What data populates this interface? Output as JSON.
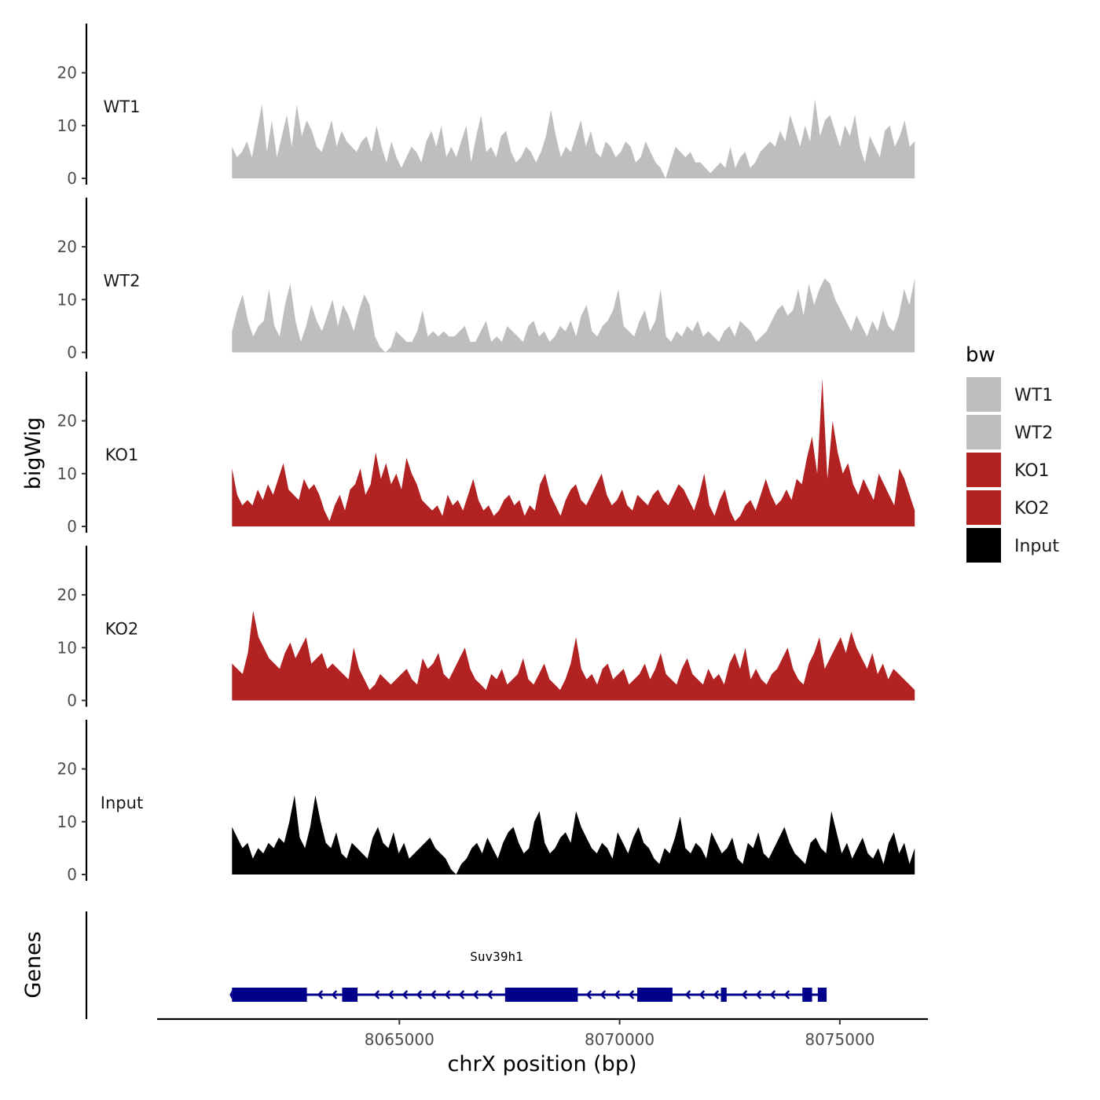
{
  "chart_data": {
    "type": "area",
    "xlabel": "chrX position (bp)",
    "ylabel": "bigWig",
    "genes_label": "Genes",
    "xlim": [
      8059500,
      8077000
    ],
    "x_ticks": [
      8065000,
      8070000,
      8075000
    ],
    "x_tick_labels": [
      "8065000",
      "8070000",
      "8075000"
    ],
    "ylim": [
      0,
      30
    ],
    "y_ticks": [
      0,
      10,
      20
    ],
    "y_tick_labels": [
      "0",
      "10",
      "20"
    ],
    "legend": {
      "title": "bw",
      "position": "right",
      "entries": [
        {
          "label": "WT1",
          "color": "#bebebe"
        },
        {
          "label": "WT2",
          "color": "#bebebe"
        },
        {
          "label": "KO1",
          "color": "#b22222"
        },
        {
          "label": "KO2",
          "color": "#b22222"
        },
        {
          "label": "Input",
          "color": "#000000"
        }
      ]
    },
    "x_start": 8061200,
    "x_end": 8076700,
    "tracks": [
      {
        "name": "WT1",
        "color": "#bebebe",
        "values": [
          6,
          4,
          5,
          7,
          4,
          9,
          14,
          5,
          11,
          4,
          8,
          12,
          6,
          14,
          8,
          11,
          9,
          6,
          5,
          8,
          11,
          6,
          9,
          7,
          6,
          5,
          7,
          8,
          5,
          10,
          6,
          3,
          7,
          4,
          2,
          4,
          6,
          5,
          3,
          7,
          9,
          6,
          10,
          4,
          6,
          4,
          7,
          10,
          3,
          8,
          12,
          5,
          6,
          4,
          8,
          9,
          5,
          3,
          4,
          6,
          5,
          3,
          5,
          8,
          13,
          8,
          4,
          6,
          5,
          8,
          11,
          6,
          9,
          5,
          4,
          7,
          6,
          4,
          5,
          7,
          6,
          3,
          4,
          7,
          5,
          3,
          2,
          0,
          3,
          6,
          5,
          4,
          5,
          3,
          3,
          2,
          1,
          2,
          3,
          2,
          6,
          2,
          4,
          5,
          2,
          3,
          5,
          6,
          7,
          6,
          9,
          7,
          12,
          9,
          6,
          10,
          7,
          15,
          8,
          11,
          12,
          9,
          6,
          10,
          8,
          12,
          6,
          3,
          8,
          6,
          4,
          9,
          10,
          6,
          8,
          11,
          6,
          7
        ]
      },
      {
        "name": "WT2",
        "color": "#bebebe",
        "values": [
          4,
          8,
          11,
          6,
          3,
          5,
          6,
          12,
          5,
          3,
          9,
          13,
          6,
          2,
          5,
          9,
          6,
          4,
          7,
          10,
          5,
          9,
          7,
          4,
          8,
          11,
          9,
          3,
          1,
          0,
          1,
          4,
          3,
          2,
          2,
          4,
          8,
          3,
          4,
          3,
          4,
          3,
          3,
          4,
          5,
          2,
          2,
          4,
          6,
          2,
          3,
          2,
          5,
          4,
          3,
          2,
          5,
          6,
          3,
          4,
          2,
          3,
          5,
          4,
          6,
          3,
          7,
          9,
          4,
          3,
          5,
          6,
          8,
          12,
          5,
          4,
          3,
          6,
          8,
          4,
          6,
          12,
          3,
          2,
          4,
          3,
          5,
          4,
          6,
          3,
          4,
          3,
          2,
          4,
          5,
          3,
          6,
          5,
          4,
          2,
          3,
          4,
          6,
          8,
          9,
          7,
          8,
          12,
          7,
          13,
          9,
          12,
          14,
          13,
          10,
          8,
          6,
          4,
          7,
          5,
          3,
          6,
          4,
          8,
          5,
          4,
          7,
          12,
          9,
          14
        ]
      },
      {
        "name": "KO1",
        "color": "#b22222",
        "values": [
          11,
          6,
          4,
          5,
          4,
          7,
          5,
          8,
          6,
          9,
          12,
          7,
          6,
          5,
          9,
          7,
          8,
          6,
          3,
          1,
          4,
          6,
          3,
          7,
          8,
          11,
          6,
          8,
          14,
          9,
          12,
          8,
          10,
          7,
          13,
          10,
          8,
          5,
          4,
          3,
          4,
          2,
          6,
          4,
          5,
          3,
          6,
          9,
          5,
          3,
          4,
          2,
          3,
          5,
          6,
          4,
          5,
          2,
          4,
          3,
          8,
          10,
          6,
          4,
          2,
          5,
          7,
          8,
          5,
          4,
          6,
          8,
          10,
          6,
          4,
          5,
          7,
          4,
          3,
          6,
          5,
          4,
          6,
          7,
          5,
          4,
          6,
          8,
          7,
          5,
          3,
          6,
          10,
          4,
          2,
          5,
          7,
          3,
          1,
          2,
          4,
          5,
          3,
          6,
          9,
          6,
          4,
          5,
          7,
          5,
          9,
          8,
          13,
          17,
          10,
          28,
          9,
          20,
          14,
          10,
          12,
          8,
          6,
          9,
          7,
          5,
          10,
          8,
          6,
          4,
          11,
          9,
          6,
          3
        ]
      },
      {
        "name": "KO2",
        "color": "#b22222",
        "values": [
          7,
          6,
          5,
          9,
          17,
          12,
          10,
          8,
          7,
          6,
          9,
          11,
          8,
          10,
          12,
          7,
          8,
          9,
          6,
          7,
          6,
          5,
          4,
          10,
          6,
          4,
          2,
          3,
          5,
          4,
          3,
          4,
          5,
          6,
          4,
          3,
          8,
          6,
          7,
          9,
          5,
          4,
          6,
          8,
          10,
          6,
          4,
          3,
          2,
          5,
          4,
          6,
          3,
          4,
          5,
          8,
          4,
          3,
          5,
          7,
          4,
          3,
          2,
          4,
          7,
          12,
          6,
          4,
          5,
          3,
          6,
          7,
          4,
          5,
          6,
          3,
          4,
          5,
          7,
          4,
          6,
          9,
          5,
          4,
          3,
          6,
          8,
          5,
          4,
          3,
          6,
          4,
          5,
          3,
          7,
          9,
          6,
          10,
          4,
          6,
          4,
          3,
          5,
          6,
          8,
          10,
          6,
          4,
          3,
          7,
          9,
          12,
          6,
          8,
          10,
          12,
          9,
          13,
          10,
          8,
          6,
          9,
          5,
          7,
          4,
          6,
          5,
          4,
          3,
          2
        ]
      },
      {
        "name": "Input",
        "color": "#000000",
        "values": [
          9,
          7,
          5,
          6,
          3,
          5,
          4,
          6,
          5,
          7,
          6,
          10,
          15,
          7,
          5,
          9,
          15,
          10,
          6,
          5,
          8,
          4,
          3,
          6,
          5,
          4,
          3,
          7,
          9,
          6,
          5,
          8,
          4,
          6,
          3,
          4,
          5,
          6,
          7,
          5,
          4,
          3,
          1,
          0,
          2,
          3,
          5,
          6,
          4,
          7,
          5,
          3,
          6,
          8,
          9,
          6,
          4,
          5,
          10,
          12,
          6,
          4,
          5,
          7,
          8,
          6,
          12,
          9,
          7,
          5,
          4,
          6,
          5,
          3,
          8,
          6,
          4,
          7,
          9,
          6,
          5,
          3,
          2,
          5,
          4,
          7,
          11,
          5,
          4,
          6,
          5,
          3,
          8,
          6,
          4,
          5,
          7,
          3,
          2,
          6,
          5,
          8,
          4,
          3,
          5,
          7,
          9,
          6,
          4,
          3,
          2,
          6,
          7,
          5,
          4,
          12,
          8,
          4,
          6,
          3,
          5,
          7,
          4,
          3,
          5,
          2,
          6,
          8,
          4,
          6,
          2,
          5
        ]
      }
    ],
    "gene": {
      "name": "Suv39h1",
      "strand": "-",
      "start": 8061200,
      "end": 8074700,
      "color": "#00008b",
      "exons": [
        [
          8061200,
          8062900
        ],
        [
          8063700,
          8064050
        ],
        [
          8067400,
          8069050
        ],
        [
          8070400,
          8071200
        ],
        [
          8072300,
          8072430
        ],
        [
          8074150,
          8074370
        ],
        [
          8074500,
          8074700
        ]
      ]
    }
  }
}
